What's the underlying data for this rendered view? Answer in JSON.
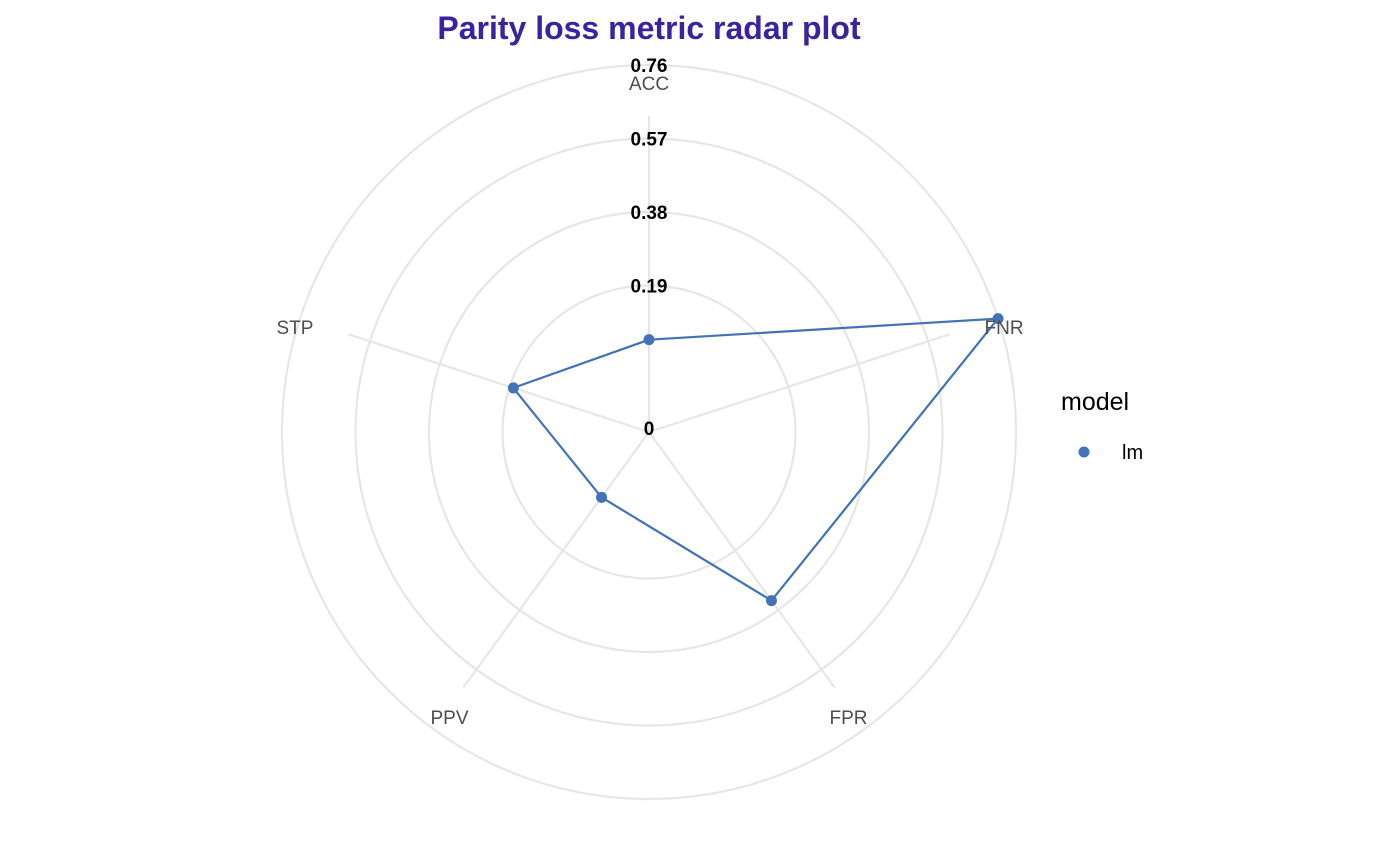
{
  "chart_data": {
    "type": "radar",
    "title": "Parity loss metric radar plot",
    "axes": [
      "ACC",
      "FNR",
      "FPR",
      "PPV",
      "STP"
    ],
    "rticks": [
      0,
      0.19,
      0.38,
      0.57,
      0.76
    ],
    "rticklabels": [
      "0",
      "0.19",
      "0.38",
      "0.57",
      "0.76"
    ],
    "rlim": [
      0,
      0.76
    ],
    "grid": true,
    "legend": {
      "title": "model",
      "position": "right"
    },
    "series": [
      {
        "name": "lm",
        "values": [
          0.05,
          0.76,
          0.35,
          0.02,
          0.18
        ],
        "color": "#4472b8"
      }
    ],
    "colors": {
      "title": "#3a22a0",
      "grid": "#e6e6e6",
      "background": "#ffffff"
    }
  }
}
